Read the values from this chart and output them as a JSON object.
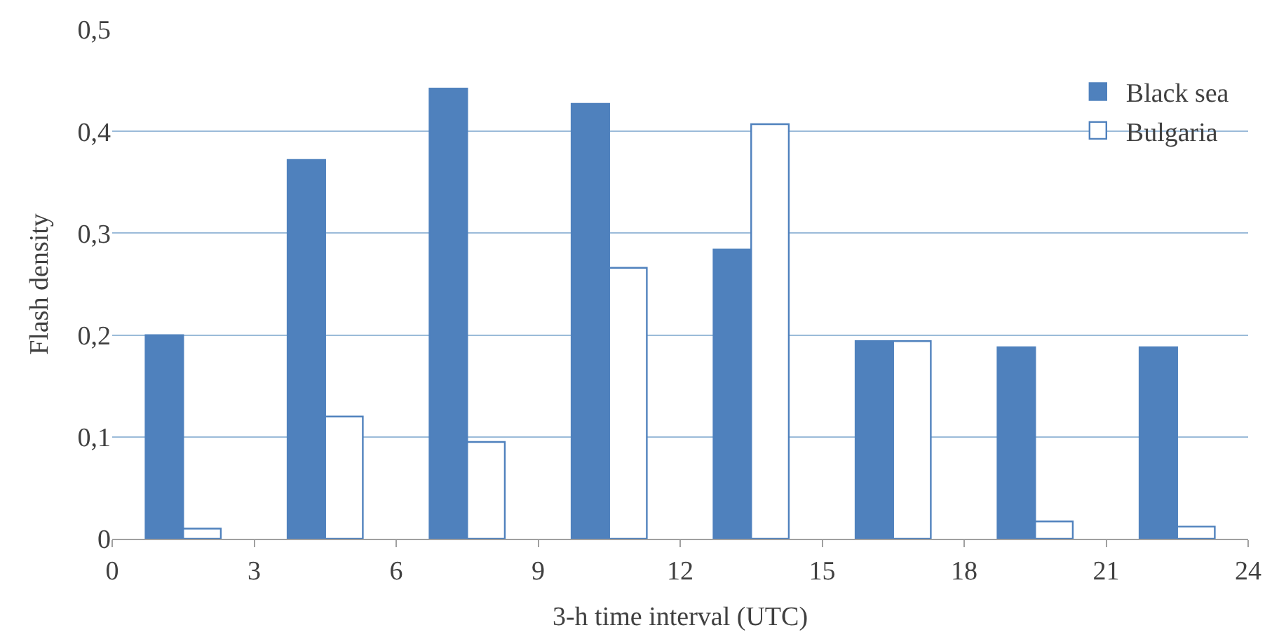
{
  "chart_data": {
    "type": "bar",
    "xlabel": "3-h time interval (UTC)",
    "ylabel": "Flash density",
    "x": [
      1.5,
      4.5,
      7.5,
      10.5,
      13.5,
      16.5,
      19.5,
      22.5
    ],
    "series": [
      {
        "name": "Black sea",
        "color": "#4f81bd",
        "values": [
          0.2,
          0.372,
          0.442,
          0.427,
          0.284,
          0.194,
          0.188,
          0.188
        ]
      },
      {
        "name": "Bulgaria",
        "color": "#ffffff",
        "values": [
          0.01,
          0.12,
          0.095,
          0.266,
          0.407,
          0.194,
          0.017,
          0.012
        ]
      }
    ],
    "xlim": [
      0,
      24
    ],
    "xticks": [
      0,
      3,
      6,
      9,
      12,
      15,
      18,
      21,
      24
    ],
    "ylim": [
      0,
      0.5
    ],
    "yticks": [
      {
        "value": 0,
        "label": "0"
      },
      {
        "value": 0.1,
        "label": "0,1"
      },
      {
        "value": 0.2,
        "label": "0,2"
      },
      {
        "value": 0.3,
        "label": "0,3"
      },
      {
        "value": 0.4,
        "label": "0,4"
      },
      {
        "value": 0.5,
        "label": "0,5"
      }
    ],
    "grid": "y",
    "legend": "top right"
  }
}
